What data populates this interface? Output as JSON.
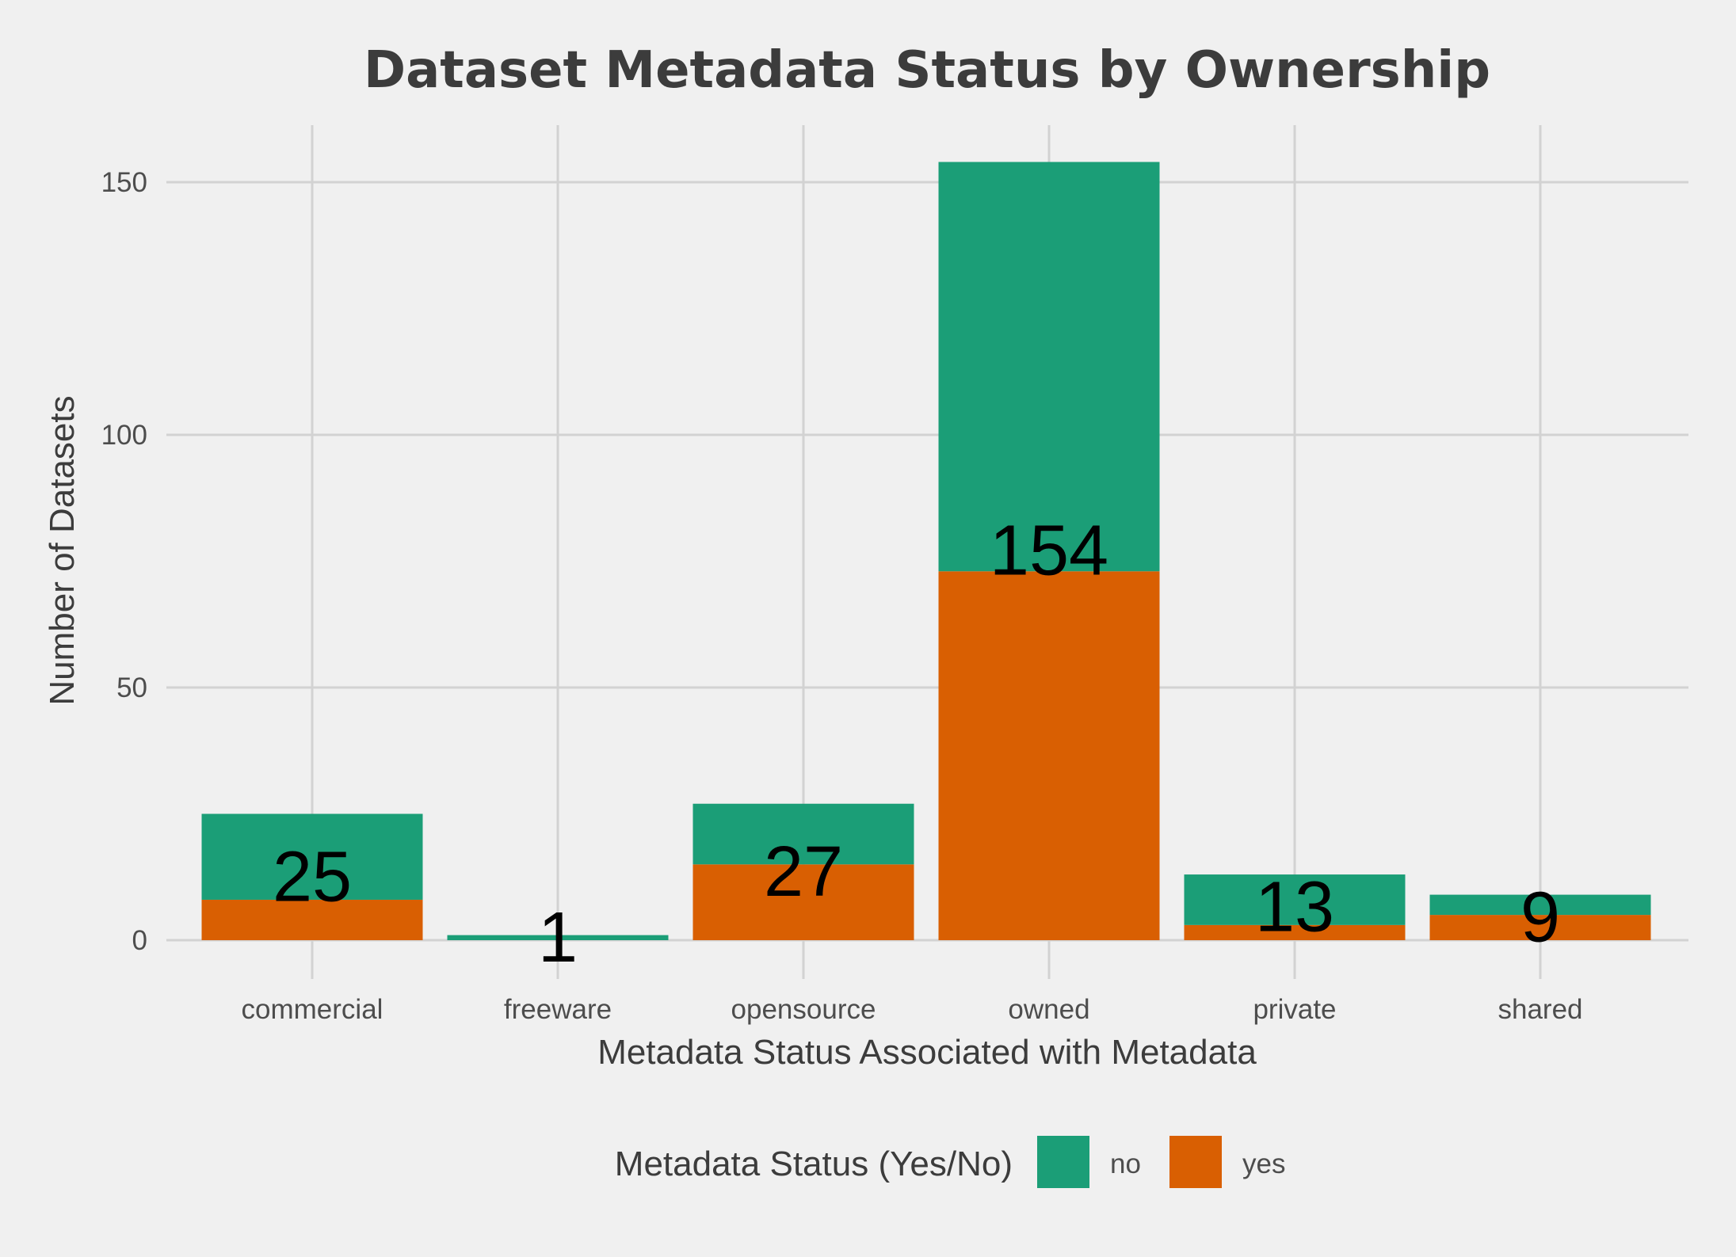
{
  "chart_data": {
    "type": "bar",
    "stacked": true,
    "title": "Dataset Metadata Status by Ownership",
    "xlabel": "Metadata Status Associated with Metadata",
    "ylabel": "Number of Datasets",
    "categories": [
      "commercial",
      "freeware",
      "opensource",
      "owned",
      "private",
      "shared"
    ],
    "series": [
      {
        "name": "yes",
        "color": "#d95f02",
        "values": [
          8,
          0,
          15,
          73,
          3,
          5
        ]
      },
      {
        "name": "no",
        "color": "#1b9e77",
        "values": [
          17,
          1,
          12,
          81,
          10,
          4
        ]
      }
    ],
    "totals": [
      25,
      1,
      27,
      154,
      13,
      9
    ],
    "data_labels": [
      "25",
      "1",
      "27",
      "154",
      "13",
      "9"
    ],
    "yticks": [
      0,
      50,
      100,
      150
    ],
    "ytick_labels": [
      "0",
      "50",
      "100",
      "150"
    ],
    "ylim": [
      0,
      161
    ],
    "grid": true,
    "legend": {
      "title": "Metadata Status (Yes/No)",
      "position": "bottom",
      "items": [
        {
          "label": "no",
          "color": "#1b9e77"
        },
        {
          "label": "yes",
          "color": "#d95f02"
        }
      ]
    }
  }
}
